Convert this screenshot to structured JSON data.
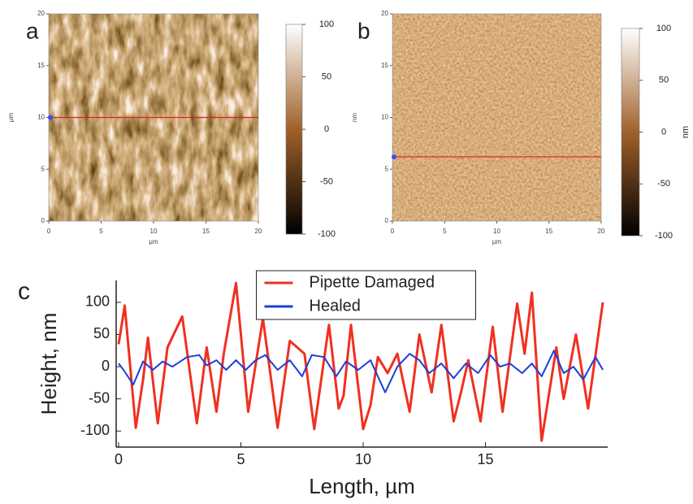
{
  "chart_data": [
    {
      "type": "image",
      "label": "a",
      "xlabel": "µm",
      "ylabel": "µm",
      "xlim": [
        0,
        20
      ],
      "ylim": [
        0,
        20
      ],
      "xticks": [
        0,
        5,
        10,
        15,
        20
      ],
      "yticks": [
        0,
        5,
        10,
        15,
        20
      ],
      "profile_y": 10,
      "profile_color": "#e02020",
      "clim": [
        -100,
        100
      ],
      "cticks": [
        100,
        50,
        0,
        -50,
        -100
      ]
    },
    {
      "type": "image",
      "label": "b",
      "xlabel": "µm",
      "ylabel": "nm",
      "clabel": "nm",
      "xlim": [
        0,
        20
      ],
      "ylim": [
        0,
        20
      ],
      "xticks": [
        0,
        5,
        10,
        15,
        20
      ],
      "yticks": [
        0,
        5,
        10,
        15,
        20
      ],
      "profile_y": 6.2,
      "profile_color": "#e02020",
      "clim": [
        -100,
        100
      ],
      "cticks": [
        100,
        50,
        0,
        -50,
        -100
      ]
    },
    {
      "type": "line",
      "label": "c",
      "xlabel": "Length, µm",
      "ylabel": "Height, nm",
      "xlim": [
        -0.1,
        20
      ],
      "ylim": [
        -125,
        134
      ],
      "xticks": [
        0,
        5,
        10,
        15
      ],
      "yticks": [
        100,
        50,
        0,
        -50,
        -100
      ],
      "legend": "upper center",
      "series": [
        {
          "name": "Pipette Damaged",
          "color": "#f03020",
          "x": [
            0,
            0.25,
            0.7,
            1.0,
            1.2,
            1.6,
            2.0,
            2.6,
            3.2,
            3.6,
            4.0,
            4.3,
            4.8,
            5.3,
            5.9,
            6.5,
            7.0,
            7.3,
            7.6,
            8.0,
            8.6,
            9.0,
            9.2,
            9.5,
            10.0,
            10.3,
            10.6,
            11.0,
            11.4,
            11.9,
            12.3,
            12.8,
            13.2,
            13.7,
            14.0,
            14.3,
            14.8,
            15.3,
            15.7,
            16.3,
            16.6,
            16.9,
            17.3,
            17.9,
            18.2,
            18.7,
            19.2,
            19.8
          ],
          "values": [
            35,
            95,
            -95,
            -20,
            45,
            -88,
            30,
            78,
            -88,
            30,
            -70,
            20,
            130,
            -70,
            75,
            -95,
            40,
            30,
            20,
            -97,
            65,
            -65,
            -45,
            65,
            -97,
            -60,
            15,
            -10,
            20,
            -70,
            50,
            -40,
            65,
            -85,
            -40,
            10,
            -85,
            62,
            -70,
            98,
            20,
            115,
            -115,
            30,
            -50,
            50,
            -65,
            100
          ]
        },
        {
          "name": "Healed",
          "color": "#1a3fd8",
          "x": [
            0,
            0.2,
            0.6,
            1.0,
            1.4,
            1.8,
            2.2,
            2.8,
            3.3,
            3.6,
            4.0,
            4.4,
            4.8,
            5.2,
            5.6,
            6.0,
            6.5,
            7.0,
            7.5,
            7.9,
            8.4,
            8.9,
            9.3,
            9.8,
            10.3,
            10.9,
            11.4,
            11.9,
            12.3,
            12.7,
            13.2,
            13.7,
            14.2,
            14.7,
            15.2,
            15.6,
            16.0,
            16.5,
            16.9,
            17.3,
            17.8,
            18.2,
            18.6,
            19.0,
            19.5,
            19.8
          ],
          "values": [
            5,
            -5,
            -28,
            8,
            -5,
            8,
            0,
            15,
            18,
            2,
            10,
            -5,
            10,
            -5,
            10,
            18,
            -5,
            10,
            -15,
            18,
            15,
            -15,
            8,
            -5,
            10,
            -40,
            0,
            20,
            10,
            -10,
            5,
            -18,
            5,
            -10,
            18,
            0,
            5,
            -10,
            5,
            -15,
            25,
            -10,
            0,
            -20,
            15,
            -5
          ]
        }
      ]
    }
  ]
}
